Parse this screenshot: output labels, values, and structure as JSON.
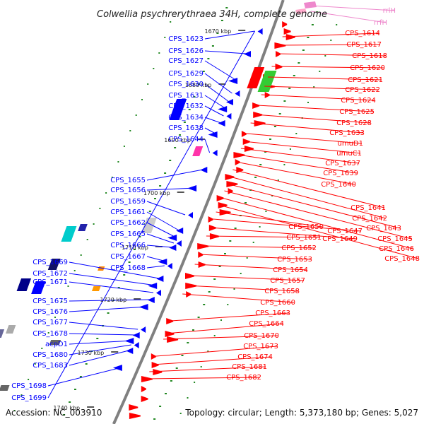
{
  "title": "Colwellia psychrerythraea 34H, complete genome",
  "footer": {
    "accession": "Accession: NC_003910",
    "summary": "Topology: circular; Length: 5,373,180 bp; Genes: 5,027"
  },
  "colors": {
    "backbone": "#808080",
    "left_strand_genes": "#0000ff",
    "right_strand_genes": "#ff0000",
    "rna_genes": "#ee88cc",
    "ruler_ticks": "#228822"
  },
  "kbp_ticks": [
    "1670 kbp",
    "1680 kbp",
    "1690 kbp",
    "1700 kbp",
    "1710 kbp",
    "1720 kbp",
    "1730 kbp",
    "1740 kbp"
  ],
  "left_labels": [
    "CPS_1623",
    "CPS_1626",
    "CPS_1627",
    "CPS_1629",
    "CPS_1630",
    "CPS_1631",
    "CPS_1632",
    "CPS_1634",
    "CPS_1638",
    "CPS_1644",
    "CPS_1655",
    "CPS_1656",
    "CPS_1659",
    "CPS_1661",
    "CPS_1662",
    "CPS_1665",
    "CPS_1666",
    "CPS_1667",
    "CPS_1668",
    "CPS_1669",
    "CPS_1672",
    "CPS_1671",
    "CPS_1675",
    "CPS_1676",
    "CPS_1677",
    "CPS_1678",
    "acpD1",
    "CPS_1680",
    "CPS_1683",
    "CPS_1698",
    "CPS_1699"
  ],
  "right_labels": [
    "rrlH",
    "rrfH",
    "CPS_1614",
    "CPS_1617",
    "CPS_1618",
    "CPS_1620",
    "CPS_1621",
    "CPS_1622",
    "CPS_1624",
    "CPS_1625",
    "CPS_1628",
    "CPS_1633",
    "umuD1",
    "umuC1",
    "CPS_1637",
    "CPS_1639",
    "CPS_1640",
    "CPS_1641",
    "CPS_1642",
    "CPS_1643",
    "CPS_1645",
    "CPS_1646",
    "CPS_1648",
    "CPS_1650",
    "CPS_1647",
    "CPS_1649",
    "CPS_1651",
    "CPS_1652",
    "CPS_1653",
    "CPS_1654",
    "CPS_1657",
    "CPS_1658",
    "CPS_1660",
    "CPS_1663",
    "CPS_1664",
    "CPS_1670",
    "CPS_1673",
    "CPS_1674",
    "CPS_1681",
    "CPS_1682"
  ]
}
